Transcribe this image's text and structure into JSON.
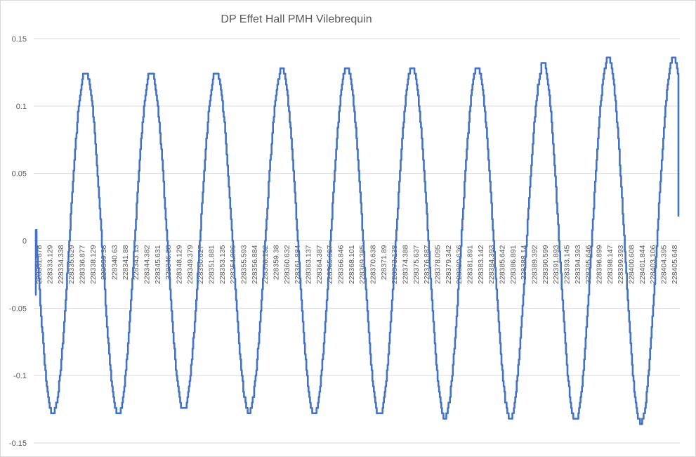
{
  "chart_data": {
    "type": "line",
    "title": "DP Effet Hall PMH Vilebrequin",
    "xlabel": "",
    "ylabel": "",
    "ylim": [
      -0.15,
      0.15
    ],
    "yticks": [
      0.15,
      0.1,
      0.05,
      0,
      -0.05,
      -0.1,
      -0.15
    ],
    "ytick_labels": [
      "0.15",
      "0.1",
      "0.05",
      "0",
      "-0.05",
      "-0.1",
      "-0.15"
    ],
    "grid": "horizontal",
    "legend": "none",
    "color": "#4472C4",
    "x_tick_labels": [
      "228331.878",
      "228333.129",
      "228334.338",
      "228335.629",
      "228336.877",
      "228338.129",
      "228339.38",
      "228340.63",
      "228341.88",
      "228343.13",
      "228344.382",
      "228345.631",
      "228346.88",
      "228348.129",
      "228349.379",
      "228350.627",
      "228351.881",
      "228353.135",
      "228354.386",
      "228355.593",
      "228356.884",
      "228358.132",
      "228359.38",
      "228360.632",
      "228361.884",
      "228363.137",
      "228364.387",
      "228365.637",
      "228366.846",
      "228368.101",
      "228369.385",
      "228370.638",
      "228371.89",
      "228373.138",
      "228374.388",
      "228375.637",
      "228376.887",
      "228378.095",
      "228379.342",
      "228380.636",
      "228381.891",
      "228383.142",
      "228384.393",
      "228385.642",
      "228386.891",
      "228388.14",
      "228389.392",
      "228390.599",
      "228391.893",
      "228393.145",
      "228394.393",
      "228395.646",
      "228396.899",
      "228398.147",
      "228399.393",
      "228400.608",
      "228401.844",
      "228403.106",
      "228404.395",
      "228405.648"
    ],
    "cycles": [
      {
        "peak": 0.126,
        "trough": -0.128
      },
      {
        "peak": 0.126,
        "trough": -0.129
      },
      {
        "peak": 0.126,
        "trough": -0.126
      },
      {
        "peak": 0.125,
        "trough": -0.127
      },
      {
        "peak": 0.129,
        "trough": -0.129
      },
      {
        "peak": 0.129,
        "trough": -0.13
      },
      {
        "peak": 0.129,
        "trough": -0.131
      },
      {
        "peak": 0.128,
        "trough": -0.132
      },
      {
        "peak": 0.134,
        "trough": -0.134
      },
      {
        "peak": 0.136,
        "trough": -0.135
      }
    ],
    "start_value": -0.04,
    "end_value": 0.018
  }
}
